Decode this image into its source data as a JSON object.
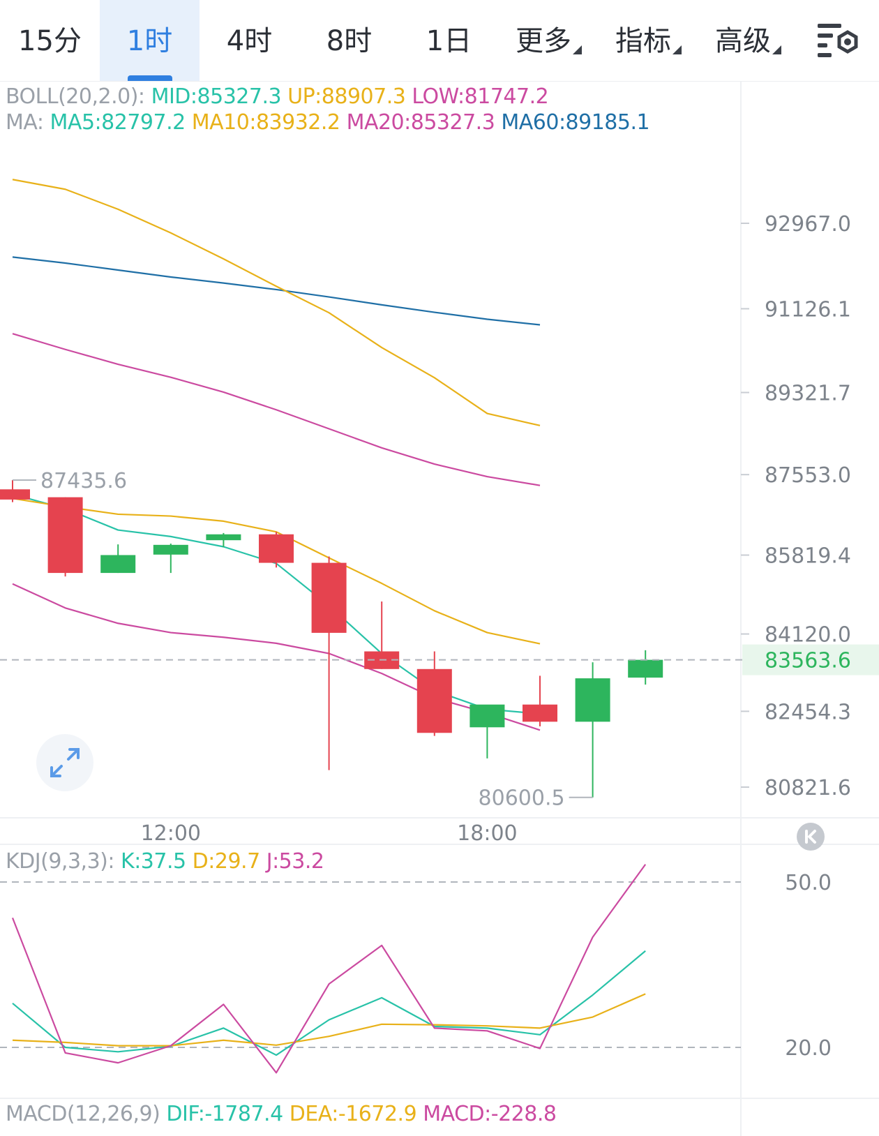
{
  "tabs": [
    {
      "label": "15分",
      "active": false,
      "dropdown": false
    },
    {
      "label": "1时",
      "active": true,
      "dropdown": false
    },
    {
      "label": "4时",
      "active": false,
      "dropdown": false
    },
    {
      "label": "8时",
      "active": false,
      "dropdown": false
    },
    {
      "label": "1日",
      "active": false,
      "dropdown": false
    },
    {
      "label": "更多",
      "active": false,
      "dropdown": true
    },
    {
      "label": "指标",
      "active": false,
      "dropdown": true
    },
    {
      "label": "高级",
      "active": false,
      "dropdown": true
    }
  ],
  "settings_icon": "chart-settings-icon",
  "legend_main": {
    "boll_name": "BOLL(20,2.0):",
    "boll_mid": "MID:85327.3",
    "boll_up": "UP:88907.3",
    "boll_low": "LOW:81747.2",
    "ma_name": "MA:",
    "ma5": "MA5:82797.2",
    "ma10": "MA10:83932.2",
    "ma20": "MA20:85327.3",
    "ma60": "MA60:89185.1"
  },
  "legend_kdj": {
    "name": "KDJ(9,3,3):",
    "k": "K:37.5",
    "d": "D:29.7",
    "j": "J:53.2"
  },
  "legend_macd": {
    "name": "MACD(12,26,9)",
    "dif": "DIF:-1787.4",
    "dea": "DEA:-1672.9",
    "macd": "MACD:-228.8"
  },
  "colors": {
    "up_candle": "#2db55d",
    "down_candle": "#e5434f",
    "ma5": "#28c2a8",
    "ma10": "#e8b119",
    "ma20": "#cb4aa0",
    "ma60": "#1f6fa6",
    "boll_up": "#e8b119",
    "boll_low": "#cb4aa0",
    "last_price_bg": "#e8f6ec",
    "axis_text": "#7d838b",
    "accent": "#2f7fe0"
  },
  "chart_data": [
    {
      "type": "candlestick",
      "title": "",
      "price_axis_ticks": [
        92967.0,
        91126.1,
        89321.7,
        87553.0,
        85819.4,
        84120.0,
        82454.3,
        80821.6
      ],
      "price_axis_tick_labels": [
        "92967.0",
        "91126.1",
        "89321.7",
        "87553.0",
        "85819.4",
        "84120.0",
        "82454.3",
        "80821.6"
      ],
      "time_labels": [
        {
          "at_candle": 3,
          "label": "12:00"
        },
        {
          "at_candle": 9,
          "label": "18:00"
        }
      ],
      "last_price": 83563.6,
      "last_price_label": "83563.6",
      "max_marker": {
        "candle": 0,
        "value": 87435.6,
        "label": "87435.6"
      },
      "min_marker": {
        "candle": 11,
        "value": 80600.5,
        "label": "80600.5"
      },
      "candles": [
        {
          "o": 87236,
          "h": 87436,
          "l": 86960,
          "c": 87016
        },
        {
          "o": 87066,
          "h": 87066,
          "l": 85360,
          "c": 85435
        },
        {
          "o": 85435,
          "h": 86050,
          "l": 85435,
          "c": 85820
        },
        {
          "o": 85830,
          "h": 86067,
          "l": 85435,
          "c": 86040
        },
        {
          "o": 86140,
          "h": 86295,
          "l": 85990,
          "c": 86267
        },
        {
          "o": 86267,
          "h": 86320,
          "l": 85552,
          "c": 85653
        },
        {
          "o": 85653,
          "h": 85790,
          "l": 81188,
          "c": 84145
        },
        {
          "o": 83745,
          "h": 84820,
          "l": 83365,
          "c": 83365
        },
        {
          "o": 83365,
          "h": 83745,
          "l": 81925,
          "c": 81990
        },
        {
          "o": 82110,
          "h": 82560,
          "l": 81440,
          "c": 82600
        },
        {
          "o": 82600,
          "h": 83220,
          "l": 82130,
          "c": 82230
        },
        {
          "o": 82230,
          "h": 83510,
          "l": 80600,
          "c": 83165
        },
        {
          "o": 83180,
          "h": 83770,
          "l": 83030,
          "c": 83563.6
        }
      ],
      "series": [
        {
          "name": "MA5",
          "values": [
            87130,
            86820,
            86360,
            86220,
            86000,
            85640,
            84730,
            83700,
            82900,
            82500,
            82400,
            null,
            null
          ]
        },
        {
          "name": "MA10",
          "values": [
            87040,
            86860,
            86700,
            86660,
            86550,
            86320,
            85760,
            85210,
            84620,
            84150,
            83910,
            null,
            null
          ]
        },
        {
          "name": "MA20",
          "values": [
            90590,
            90250,
            89930,
            89650,
            89330,
            88950,
            88540,
            88130,
            87780,
            87510,
            87320,
            null,
            null
          ]
        },
        {
          "name": "MA60",
          "values": [
            92240,
            92110,
            91960,
            91810,
            91680,
            91540,
            91380,
            91210,
            91050,
            90900,
            90780,
            null,
            null
          ]
        },
        {
          "name": "BOLL UP",
          "values": [
            93910,
            93700,
            93270,
            92760,
            92200,
            91610,
            91040,
            90290,
            89640,
            88870,
            88610,
            null,
            null
          ]
        },
        {
          "name": "BOLL LOW",
          "values": [
            85200,
            84680,
            84350,
            84150,
            84050,
            83920,
            83700,
            83270,
            82740,
            82420,
            82050,
            null,
            null
          ]
        }
      ]
    },
    {
      "type": "line",
      "title": "KDJ(9,3,3)",
      "y_ticks": [
        50.0,
        20.0
      ],
      "y_tick_labels": [
        "50.0",
        "20.0"
      ],
      "series": [
        {
          "name": "K",
          "values": [
            28.0,
            20.0,
            19.2,
            20.2,
            23.5,
            18.6,
            25.0,
            29.0,
            23.8,
            23.5,
            22.3,
            29.5,
            37.5
          ]
        },
        {
          "name": "D",
          "values": [
            21.3,
            20.9,
            20.3,
            20.3,
            21.3,
            20.4,
            22.0,
            24.2,
            24.1,
            23.9,
            23.5,
            25.5,
            29.7
          ]
        },
        {
          "name": "J",
          "values": [
            43.5,
            19.0,
            17.2,
            20.3,
            27.8,
            15.4,
            31.5,
            38.5,
            23.5,
            23.0,
            19.8,
            40.0,
            53.2
          ]
        }
      ]
    }
  ]
}
